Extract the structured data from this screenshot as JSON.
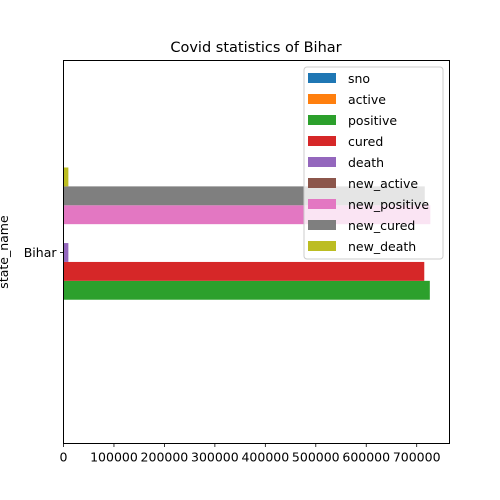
{
  "chart_data": {
    "type": "bar",
    "orientation": "horizontal",
    "title": "Covid statistics of Bihar",
    "xlabel": "",
    "ylabel": "state_name",
    "categories": [
      "Bihar"
    ],
    "xlim": [
      0,
      765000
    ],
    "xticks": [
      0,
      100000,
      200000,
      300000,
      400000,
      500000,
      600000,
      700000
    ],
    "legend_position": "top-right",
    "series": [
      {
        "name": "sno",
        "values": [
          5
        ],
        "color": "#1f77b4"
      },
      {
        "name": "active",
        "values": [
          1000
        ],
        "color": "#ff7f0e"
      },
      {
        "name": "positive",
        "values": [
          726000
        ],
        "color": "#2ca02c"
      },
      {
        "name": "cured",
        "values": [
          715000
        ],
        "color": "#d62728"
      },
      {
        "name": "death",
        "values": [
          9650
        ],
        "color": "#9467bd"
      },
      {
        "name": "new_active",
        "values": [
          1000
        ],
        "color": "#8c564b"
      },
      {
        "name": "new_positive",
        "values": [
          727000
        ],
        "color": "#e377c2"
      },
      {
        "name": "new_cured",
        "values": [
          716000
        ],
        "color": "#7f7f7f"
      },
      {
        "name": "new_death",
        "values": [
          9660
        ],
        "color": "#bcbd22"
      }
    ]
  }
}
